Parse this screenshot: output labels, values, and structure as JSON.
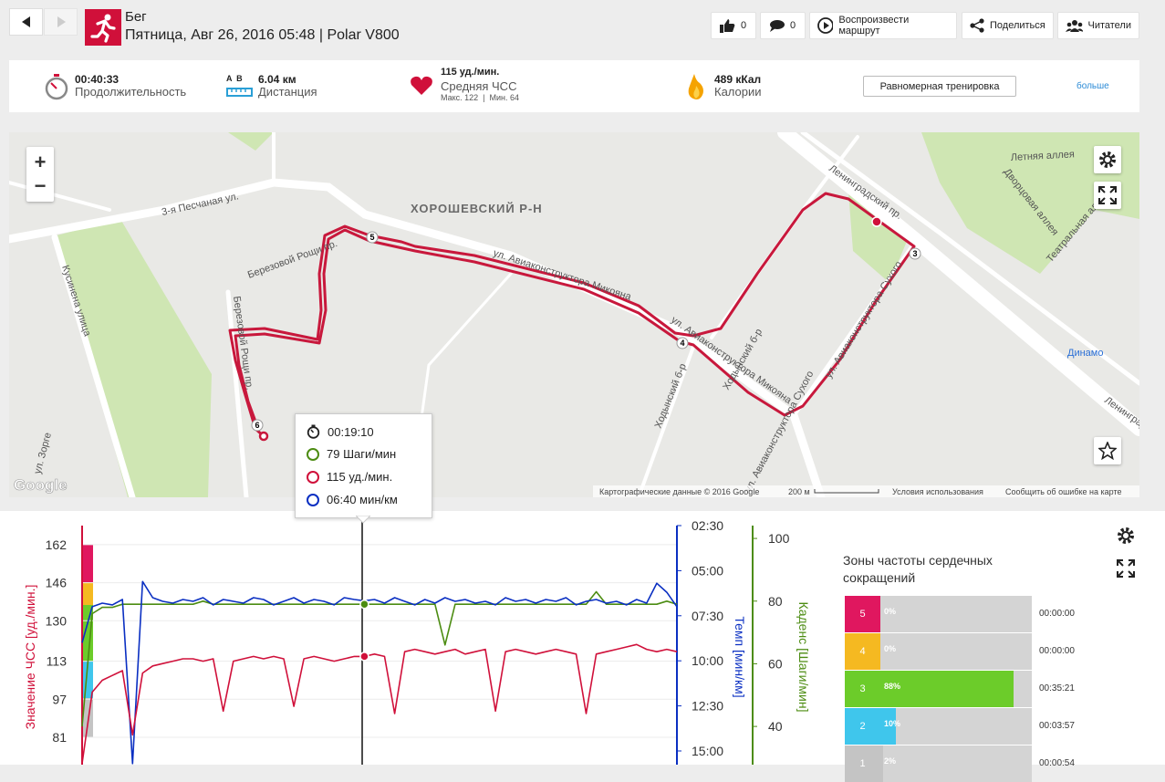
{
  "header": {
    "sport": "Бег",
    "subtitle": "Пятница, Авг 26, 2016 05:48 | Polar V800"
  },
  "actions": {
    "likes": "0",
    "comments": "0",
    "replay": "Воспроизвести маршрут",
    "share": "Поделиться",
    "followers": "Читатели"
  },
  "stats": {
    "duration": {
      "value": "00:40:33",
      "label": "Продолжительность"
    },
    "distance": {
      "markers": "A  B",
      "value": "6.04 км",
      "label": "Дистанция"
    },
    "heart_rate": {
      "value": "115 уд./мин.",
      "label": "Средняя ЧСС",
      "detail": "Макс. 122  |  Мин. 64"
    },
    "calories": {
      "value": "489 кКал",
      "label": "Калории"
    },
    "training_button": "Равномерная тренировка",
    "more": "больше"
  },
  "map": {
    "labels": [
      "ХОРОШЕВСКИЙ Р-Н",
      "3-я Песчаная ул.",
      "ул. Авиаконструктора Микояна",
      "ул. Авиаконструктора Микояна",
      "Березовой Рощи пр.",
      "Березовой Рощи пр.",
      "Кусинена улица",
      "Ходынский б-р",
      "Ходынский б-р",
      "Ленинградский пр.",
      "Летняя аллея",
      "Дворцовая аллея",
      "Театральная аллея",
      "Динамо",
      "ул. Авиаконструктора Сухого",
      "ул. Авиаконструктора Сухого",
      "Ленинградский пр.",
      "ул. Зорге"
    ],
    "km_markers": [
      "3",
      "4",
      "5",
      "6"
    ],
    "footer": {
      "attribution": "Картографические данные © 2016 Google",
      "scale": "200 м",
      "terms": "Условия использования",
      "report": "Сообщить об ошибке на карте",
      "logo": "Google"
    },
    "zoom_in": "+",
    "zoom_out": "−"
  },
  "tooltip": {
    "time": "00:19:10",
    "cadence": "79 Шаги/мин",
    "heart_rate": "115 уд./мин.",
    "pace": "06:40 мин/км"
  },
  "chart_data": {
    "type": "line",
    "series": [
      {
        "name": "Значение ЧСС [уд./мин.]",
        "color": "#d0103a",
        "values": [
          70,
          100,
          105,
          107,
          109,
          82,
          108,
          111,
          112,
          113,
          114,
          114,
          113,
          114,
          92,
          113,
          114,
          115,
          114,
          115,
          114,
          94,
          114,
          115,
          114,
          113,
          114,
          115,
          115,
          116,
          115,
          91,
          117,
          118,
          117,
          116,
          117,
          118,
          116,
          117,
          118,
          92,
          117,
          118,
          117,
          116,
          117,
          118,
          117,
          116,
          91,
          116,
          117,
          118,
          119,
          120,
          118,
          117,
          118,
          117
        ]
      },
      {
        "name": "Темп [мин/км]",
        "color": "#0a2fc2",
        "axis": "y2",
        "values": [
          9,
          7.0,
          6.8,
          6.9,
          6.6,
          15.7,
          5.6,
          6.5,
          6.7,
          6.8,
          6.6,
          6.7,
          6.5,
          6.9,
          6.6,
          6.7,
          6.8,
          6.5,
          6.6,
          6.9,
          6.7,
          6.5,
          6.8,
          6.6,
          6.7,
          6.9,
          6.5,
          6.6,
          6.67,
          6.6,
          6.8,
          6.5,
          6.7,
          6.9,
          6.6,
          6.8,
          6.5,
          6.7,
          6.6,
          6.8,
          6.7,
          6.9,
          6.5,
          6.7,
          6.6,
          6.8,
          6.6,
          6.7,
          6.5,
          6.9,
          6.7,
          6.6,
          6.8,
          6.7,
          6.9,
          6.6,
          6.8,
          5.7,
          6.2,
          7.0
        ]
      },
      {
        "name": "Каденс [Шаги/мин]",
        "color": "#4c8c12",
        "axis": "y3",
        "values": [
          40,
          76,
          78,
          78,
          79,
          79,
          79,
          79,
          79,
          79,
          79,
          79,
          80,
          79,
          79,
          79,
          79,
          79,
          79,
          79,
          79,
          79,
          79,
          79,
          79,
          79,
          79,
          79,
          79,
          79,
          79,
          79,
          79,
          79,
          79,
          79,
          66,
          79,
          79,
          79,
          79,
          79,
          79,
          79,
          79,
          79,
          79,
          79,
          79,
          79,
          79,
          83,
          79,
          79,
          79,
          79,
          79,
          79,
          80,
          79
        ]
      }
    ],
    "ylim": [
      69.5,
      170
    ],
    "yticks": [
      162,
      146,
      130,
      113,
      97,
      81
    ],
    "y2lim": [
      2.5,
      15.76
    ],
    "y2_reversed": true,
    "y2ticks": [
      {
        "value": 2.5,
        "label": "02:30"
      },
      {
        "value": 5,
        "label": "05:00"
      },
      {
        "value": 7.5,
        "label": "07:30"
      },
      {
        "value": 10,
        "label": "10:00"
      },
      {
        "value": 12.5,
        "label": "12:30"
      },
      {
        "value": 15,
        "label": "15:00"
      }
    ],
    "y3lim": [
      27.8,
      104.1
    ],
    "y3ticks": [
      100,
      80,
      60,
      40
    ]
  },
  "zones": {
    "title": "Зоны частоты сердечных сокращений",
    "rows": [
      {
        "zone": "5",
        "color": "#e0175f",
        "percent": 0,
        "percent_label": "0%",
        "time": "00:00:00"
      },
      {
        "zone": "4",
        "color": "#f5b921",
        "percent": 0,
        "percent_label": "0%",
        "time": "00:00:00"
      },
      {
        "zone": "3",
        "color": "#6ccc2a",
        "percent": 88,
        "percent_label": "88%",
        "time": "00:35:21"
      },
      {
        "zone": "2",
        "color": "#3fc6ec",
        "percent": 10,
        "percent_label": "10%",
        "time": "00:03:57"
      },
      {
        "zone": "1",
        "color": "#c4c4c4",
        "percent": 2,
        "percent_label": "2%",
        "time": "00:00:54"
      }
    ]
  }
}
